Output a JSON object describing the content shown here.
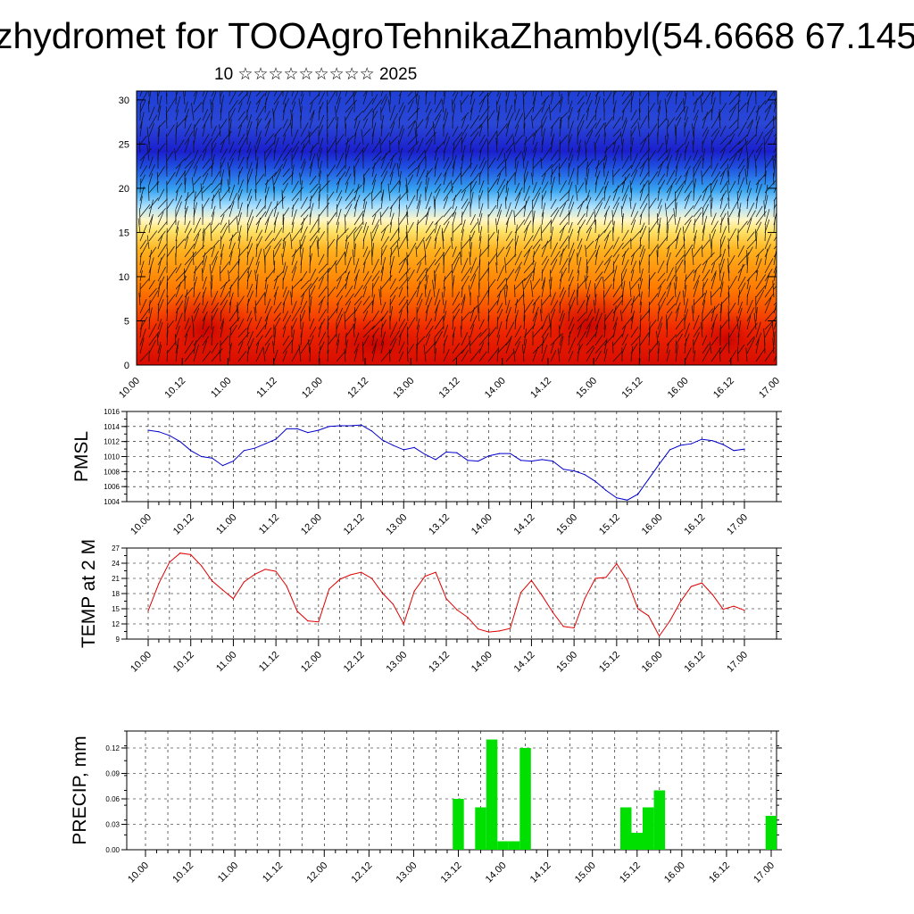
{
  "header": {
    "title": "zhydromet for TOOAgroTehnikaZhambyl(54.6668 67.145",
    "subtitle": "10 ☆☆☆☆☆☆☆☆☆ 2025"
  },
  "colors": {
    "pmsl_line": "#0000cc",
    "temp_line": "#dd0000",
    "precip_bar": "#00e000",
    "cross_section_top": "#1a2ad8",
    "cross_section_mid": "#ffd84a",
    "cross_section_bottom": "#e01400"
  },
  "chart_data": [
    {
      "type": "heatmap",
      "name": "cross-section",
      "x_ticks": [
        "10.00",
        "10.12",
        "11.00",
        "11.12",
        "12.00",
        "12.12",
        "13.00",
        "13.12",
        "14.00",
        "14.12",
        "15.00",
        "15.12",
        "16.00",
        "16.12",
        "17.00"
      ],
      "y_ticks": [
        "0",
        "5",
        "10",
        "15",
        "20",
        "25",
        "30"
      ],
      "ylim": [
        0,
        31
      ]
    },
    {
      "type": "line",
      "ylabel": "PMSL",
      "ylim": [
        1004,
        1016
      ],
      "y_ticks": [
        "1004",
        "1006",
        "1008",
        "1010",
        "1012",
        "1014",
        "1016"
      ],
      "x_ticks": [
        "10.00",
        "10.12",
        "11.00",
        "11.12",
        "12.00",
        "12.12",
        "13.00",
        "13.12",
        "14.00",
        "14.12",
        "15.00",
        "15.12",
        "16.00",
        "16.12",
        "17.00"
      ],
      "x": [
        0,
        3,
        6,
        9,
        12,
        15,
        18,
        21,
        24,
        27,
        30,
        33,
        36,
        39,
        42,
        45,
        48,
        51,
        54,
        57,
        60,
        63,
        66,
        69,
        72,
        75,
        78,
        81,
        84,
        87,
        90,
        93,
        96,
        99,
        102,
        105,
        108,
        111,
        114,
        117,
        120,
        123,
        126,
        129,
        132,
        135,
        138,
        141,
        144,
        147,
        150,
        153,
        156,
        159,
        162,
        165,
        168
      ],
      "values": [
        1013.5,
        1013.3,
        1012.8,
        1012,
        1010.8,
        1010,
        1009.8,
        1008.8,
        1009.4,
        1010.8,
        1011.1,
        1011.7,
        1012.3,
        1013.7,
        1013.7,
        1013.2,
        1013.5,
        1014,
        1014.1,
        1014.1,
        1014.2,
        1013.4,
        1012.2,
        1011.5,
        1010.9,
        1011.2,
        1010.3,
        1009.6,
        1010.6,
        1010.5,
        1009.5,
        1009.4,
        1010.1,
        1010.4,
        1010.4,
        1009.5,
        1009.4,
        1009.6,
        1009.4,
        1008.3,
        1008.1,
        1007.6,
        1006.7,
        1005.5,
        1004.5,
        1004.2,
        1005,
        1007,
        1009,
        1010.9,
        1011.5,
        1011.7,
        1012.3,
        1012.1,
        1011.6,
        1010.8,
        1011
      ],
      "line_color": "#0000cc"
    },
    {
      "type": "line",
      "ylabel": "TEMP at 2 M",
      "ylim": [
        9,
        27
      ],
      "y_ticks": [
        "9",
        "12",
        "15",
        "18",
        "21",
        "24",
        "27"
      ],
      "x_ticks": [
        "10.00",
        "10.12",
        "11.00",
        "11.12",
        "12.00",
        "12.12",
        "13.00",
        "13.12",
        "14.00",
        "14.12",
        "15.00",
        "15.12",
        "16.00",
        "16.12",
        "17.00"
      ],
      "x": [
        0,
        3,
        6,
        9,
        12,
        15,
        18,
        21,
        24,
        27,
        30,
        33,
        36,
        39,
        42,
        45,
        48,
        51,
        54,
        57,
        60,
        63,
        66,
        69,
        72,
        75,
        78,
        81,
        84,
        87,
        90,
        93,
        96,
        99,
        102,
        105,
        108,
        111,
        114,
        117,
        120,
        123,
        126,
        129,
        132,
        135,
        138,
        141,
        144,
        147,
        150,
        153,
        156,
        159,
        162,
        165,
        168
      ],
      "values": [
        14.6,
        20,
        24.2,
        26,
        25.7,
        23.5,
        20.5,
        18.7,
        17,
        20.3,
        21.8,
        22.8,
        22.4,
        19.5,
        14.5,
        12.6,
        12.4,
        18.9,
        20.8,
        21.7,
        22.2,
        21,
        18.1,
        15.9,
        12,
        18.5,
        21.4,
        22.2,
        17,
        14.8,
        13.3,
        11,
        10.4,
        10.6,
        11.1,
        18.2,
        20.6,
        17.6,
        14.3,
        11.5,
        11.2,
        17,
        21,
        21.2,
        23.9,
        20.6,
        15,
        13.6,
        9.6,
        12.6,
        16.4,
        19.4,
        20.1,
        17.8,
        14.9,
        15.5,
        14.7
      ],
      "line_color": "#dd0000"
    },
    {
      "type": "bar",
      "ylabel": "PRECIP, mm",
      "ylim": [
        0,
        0.14
      ],
      "y_ticks": [
        "0.00",
        "0.03",
        "0.06",
        "0.09",
        "0.12"
      ],
      "x_ticks": [
        "10.00",
        "10.12",
        "11.00",
        "11.12",
        "12.00",
        "12.12",
        "13.00",
        "13.12",
        "14.00",
        "14.12",
        "15.00",
        "15.12",
        "16.00",
        "16.12",
        "17.00"
      ],
      "bars": [
        {
          "x": 84,
          "value": 0.06
        },
        {
          "x": 90,
          "value": 0.05
        },
        {
          "x": 93,
          "value": 0.13
        },
        {
          "x": 96,
          "value": 0.01
        },
        {
          "x": 99,
          "value": 0.01
        },
        {
          "x": 102,
          "value": 0.12
        },
        {
          "x": 129,
          "value": 0.05
        },
        {
          "x": 132,
          "value": 0.02
        },
        {
          "x": 135,
          "value": 0.05
        },
        {
          "x": 138,
          "value": 0.07
        },
        {
          "x": 168,
          "value": 0.04
        }
      ],
      "bar_color": "#00e000"
    }
  ]
}
